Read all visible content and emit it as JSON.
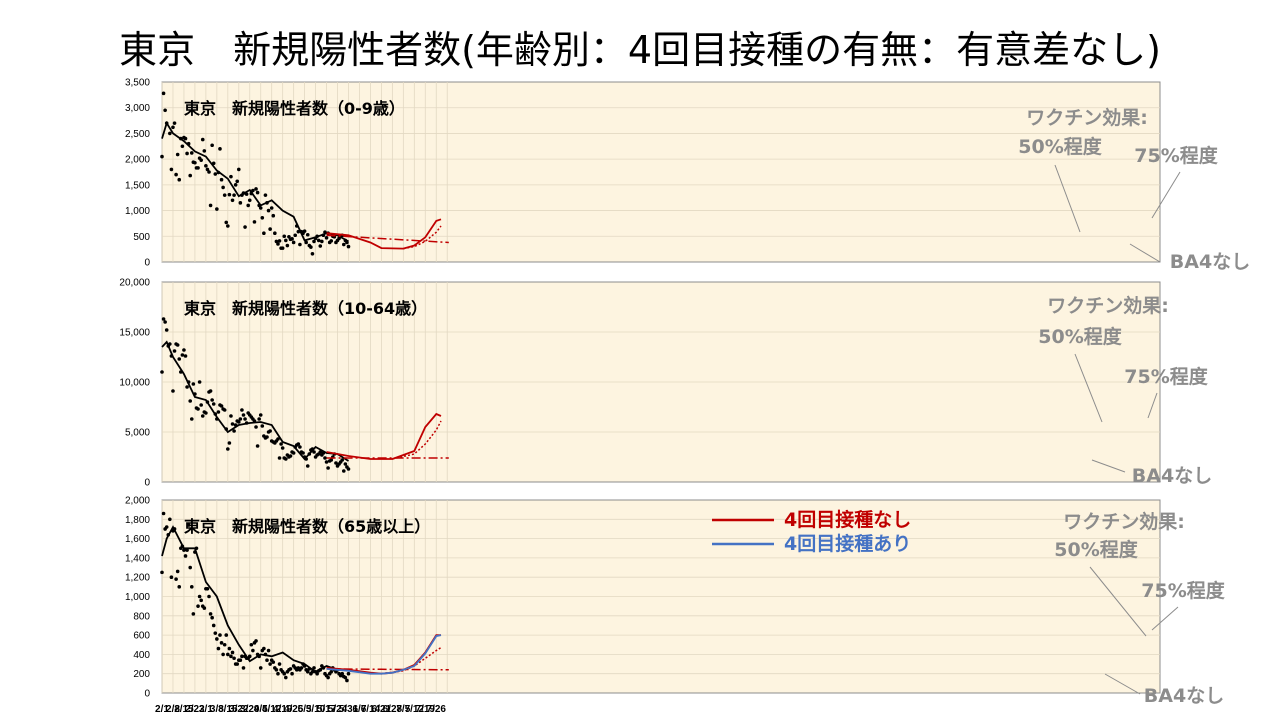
{
  "page": {
    "title": "東京　新規陽性者数(年齢別：4回目接種の有無：有意差なし)"
  },
  "colors": {
    "plot_bg": "#fdf4e0",
    "grid": "#e2d8c2",
    "observed": "#000000",
    "no_4th_dose": "#c00000",
    "with_4th_dose": "#4472c4",
    "annotation": "#8c8c8c"
  },
  "legend": [
    {
      "label": "4回目接種なし",
      "color": "#c00000"
    },
    {
      "label": "4回目接種あり",
      "color": "#4472c4"
    }
  ],
  "chart_data": {
    "type": "line",
    "x_ticks": [
      "2/1",
      "2/8",
      "2/15",
      "2/22",
      "3/1",
      "3/8",
      "3/15",
      "3/22",
      "3/29",
      "4/5",
      "4/12",
      "4/19",
      "4/26",
      "5/3",
      "5/10",
      "5/17",
      "5/24",
      "5/31",
      "6/7",
      "6/14",
      "6/21",
      "6/28",
      "7/5",
      "7/12",
      "7/19",
      "7/26"
    ],
    "panels": [
      {
        "title": "東京　新規陽性者数（0-9歳）",
        "ylim": [
          0,
          3500
        ],
        "y_ticks": [
          "0",
          "500",
          "1,000",
          "1,500",
          "2,000",
          "2,500",
          "3,000",
          "3,500"
        ],
        "annotations": {
          "effect": "ワクチン効果:",
          "p50": "50%程度",
          "p75": "75%程度",
          "no_ba4": "BA4なし"
        },
        "smoothed_days": [
          0,
          3,
          7,
          14,
          21,
          28,
          35,
          42,
          49,
          56,
          63,
          70,
          77,
          84,
          91,
          98,
          105,
          112,
          119
        ],
        "smoothed": [
          2400,
          2700,
          2500,
          2350,
          2150,
          2050,
          1780,
          1620,
          1280,
          1400,
          1100,
          1200,
          1000,
          880,
          420,
          480,
          560,
          520,
          400
        ],
        "daily_days": [
          0,
          1,
          2,
          3,
          5,
          6,
          7,
          8,
          9,
          10,
          11,
          12,
          13,
          14,
          15,
          16,
          17,
          18,
          19,
          20,
          21,
          22,
          23,
          24,
          25,
          26,
          27,
          28,
          29,
          30,
          31,
          32,
          33,
          34,
          35,
          36,
          37,
          38,
          39,
          40,
          41,
          42,
          43,
          44,
          45,
          46,
          47,
          48,
          49,
          50,
          51,
          52,
          53,
          54,
          55,
          56,
          57,
          58,
          59,
          60,
          61,
          62,
          63,
          64,
          65,
          66,
          67,
          68,
          69,
          70,
          71,
          72,
          73,
          74,
          75,
          76,
          77,
          78,
          79,
          80,
          81,
          82,
          83,
          84,
          85,
          86,
          87,
          88,
          89,
          90,
          91,
          92,
          93,
          94,
          95,
          96,
          97,
          98,
          99,
          100,
          101,
          102,
          103,
          104,
          105,
          106,
          107,
          108,
          109,
          110,
          111,
          112,
          113,
          114,
          115,
          116,
          117,
          118,
          119
        ],
        "daily": [
          2050,
          3280,
          2950,
          2700,
          2500,
          1800,
          2620,
          2700,
          1700,
          2090,
          1600,
          2400,
          2250,
          2420,
          2400,
          2110,
          2300,
          1680,
          2120,
          1940,
          1930,
          1830,
          1830,
          2020,
          1980,
          2380,
          2160,
          1870,
          1800,
          1750,
          1100,
          2270,
          1920,
          1710,
          1030,
          1740,
          2200,
          1600,
          1450,
          1300,
          770,
          700,
          1310,
          1660,
          1200,
          1300,
          1500,
          1570,
          1800,
          1150,
          1300,
          1340,
          680,
          1320,
          1100,
          1200,
          1330,
          1390,
          780,
          1420,
          1350,
          1100,
          1050,
          860,
          560,
          1300,
          1150,
          1000,
          640,
          1050,
          900,
          560,
          400,
          350,
          410,
          270,
          270,
          500,
          420,
          320,
          490,
          440,
          450,
          380,
          520,
          700,
          590,
          340,
          590,
          560,
          600,
          380,
          530,
          320,
          290,
          160,
          400,
          460,
          500,
          420,
          310,
          400,
          520,
          580,
          470,
          560,
          380,
          410,
          500,
          490,
          380,
          420,
          460,
          500,
          520,
          340,
          420,
          380,
          300
        ],
        "no_ba4": {
          "days": [
            105,
            183
          ],
          "values": [
            520,
            380
          ]
        },
        "proj_50": {
          "days": [
            105,
            119,
            133,
            140,
            154,
            161,
            168,
            175,
            178
          ],
          "values": [
            560,
            520,
            380,
            270,
            260,
            320,
            480,
            800,
            830
          ]
        },
        "proj_75": {
          "days": [
            154,
            161,
            168,
            175,
            178
          ],
          "values": [
            260,
            300,
            400,
            580,
            700
          ]
        }
      },
      {
        "title": "東京　新規陽性者数（10-64歳）",
        "ylim": [
          0,
          20000
        ],
        "y_ticks": [
          "0",
          "5,000",
          "10,000",
          "15,000",
          "20,000"
        ],
        "annotations": {
          "effect": "ワクチン効果:",
          "p50": "50%程度",
          "p75": "75%程度",
          "no_ba4": "BA4なし"
        },
        "smoothed_days": [
          0,
          3,
          7,
          14,
          21,
          28,
          35,
          42,
          49,
          56,
          63,
          70,
          77,
          84,
          91,
          98,
          105,
          112,
          119
        ],
        "smoothed": [
          13500,
          14000,
          12500,
          10800,
          8500,
          8200,
          6500,
          5000,
          5700,
          5900,
          6000,
          5700,
          4000,
          3600,
          2300,
          3500,
          2900,
          2800,
          2100
        ],
        "daily_days": [
          0,
          1,
          2,
          3,
          4,
          5,
          6,
          7,
          8,
          9,
          10,
          11,
          12,
          13,
          14,
          15,
          16,
          17,
          18,
          19,
          20,
          21,
          22,
          23,
          24,
          25,
          26,
          27,
          28,
          29,
          30,
          31,
          32,
          33,
          34,
          35,
          36,
          37,
          38,
          39,
          40,
          41,
          42,
          43,
          44,
          45,
          46,
          47,
          48,
          49,
          50,
          51,
          52,
          53,
          54,
          55,
          56,
          57,
          58,
          59,
          60,
          61,
          62,
          63,
          64,
          65,
          66,
          67,
          68,
          69,
          70,
          71,
          72,
          73,
          74,
          75,
          76,
          77,
          78,
          79,
          80,
          81,
          82,
          83,
          84,
          85,
          86,
          87,
          88,
          89,
          90,
          91,
          92,
          93,
          94,
          95,
          96,
          97,
          98,
          99,
          100,
          101,
          102,
          103,
          104,
          105,
          106,
          107,
          108,
          109,
          110,
          111,
          112,
          113,
          114,
          115,
          116,
          117,
          118,
          119
        ],
        "daily": [
          11000,
          16300,
          16000,
          15200,
          13600,
          13800,
          12600,
          9100,
          13100,
          13800,
          13700,
          12300,
          11000,
          12700,
          13200,
          12600,
          9500,
          10000,
          8100,
          6300,
          9800,
          8800,
          7400,
          7300,
          10000,
          7700,
          6600,
          7000,
          6900,
          8000,
          9000,
          9100,
          8200,
          7800,
          6800,
          6300,
          7000,
          7700,
          7600,
          7300,
          7200,
          5300,
          3300,
          3900,
          6600,
          5800,
          5100,
          5700,
          6100,
          6000,
          6300,
          7200,
          6700,
          6300,
          5900,
          6900,
          6700,
          6500,
          6300,
          6100,
          5500,
          3600,
          6300,
          6700,
          5600,
          4600,
          4400,
          4500,
          5000,
          5100,
          4100,
          4000,
          3900,
          4100,
          4300,
          2400,
          3800,
          3400,
          2400,
          2300,
          2700,
          2500,
          2600,
          3000,
          2900,
          3500,
          3700,
          3800,
          3500,
          3000,
          2900,
          2500,
          2300,
          1600,
          2800,
          3200,
          3300,
          3000,
          2500,
          2700,
          2800,
          3000,
          2700,
          2900,
          2400,
          2000,
          1400,
          2100,
          2200,
          2500,
          2800,
          1900,
          1600,
          1800,
          2000,
          2200,
          1100,
          1800,
          1500,
          1300
        ],
        "no_ba4": {
          "days": [
            105,
            183
          ],
          "values": [
            2400,
            2400
          ]
        },
        "proj_50": {
          "days": [
            105,
            119,
            133,
            147,
            161,
            168,
            175,
            178
          ],
          "values": [
            3000,
            2600,
            2300,
            2300,
            3100,
            5500,
            6800,
            6600
          ]
        },
        "proj_75": {
          "days": [
            147,
            161,
            168,
            175,
            178
          ],
          "values": [
            2300,
            2800,
            3800,
            5200,
            6100
          ]
        }
      },
      {
        "title": "東京　新規陽性者数（65歳以上）",
        "ylim": [
          0,
          2000
        ],
        "y_ticks": [
          "0",
          "200",
          "400",
          "600",
          "800",
          "1,000",
          "1,200",
          "1,400",
          "1,600",
          "1,800",
          "2,000"
        ],
        "annotations": {
          "effect": "ワクチン効果:",
          "p50": "50%程度",
          "p75": "75%程度",
          "no_ba4": "BA4なし"
        },
        "smoothed_days": [
          0,
          3,
          7,
          14,
          21,
          28,
          35,
          42,
          49,
          56,
          63,
          70,
          77,
          84,
          91,
          98,
          105,
          112,
          119
        ],
        "smoothed": [
          1420,
          1600,
          1720,
          1500,
          1500,
          1150,
          1000,
          700,
          500,
          330,
          400,
          380,
          420,
          340,
          300,
          220,
          280,
          240,
          240
        ],
        "daily_days": [
          0,
          1,
          2,
          3,
          4,
          5,
          6,
          7,
          8,
          9,
          10,
          11,
          12,
          13,
          14,
          15,
          16,
          17,
          18,
          19,
          20,
          21,
          22,
          23,
          24,
          25,
          26,
          27,
          28,
          29,
          30,
          31,
          32,
          33,
          34,
          35,
          36,
          37,
          38,
          39,
          40,
          41,
          42,
          43,
          44,
          45,
          46,
          47,
          48,
          49,
          50,
          51,
          52,
          53,
          54,
          55,
          56,
          57,
          58,
          59,
          60,
          61,
          62,
          63,
          64,
          65,
          66,
          67,
          68,
          69,
          70,
          71,
          72,
          73,
          74,
          75,
          76,
          77,
          78,
          79,
          80,
          81,
          82,
          83,
          84,
          85,
          86,
          87,
          88,
          89,
          90,
          91,
          92,
          93,
          94,
          95,
          96,
          97,
          98,
          99,
          100,
          101,
          102,
          103,
          104,
          105,
          106,
          107,
          108,
          109,
          110,
          111,
          112,
          113,
          114,
          115,
          116,
          117,
          118,
          119
        ],
        "daily": [
          1250,
          1860,
          1700,
          1720,
          1640,
          1800,
          1200,
          1680,
          1700,
          1180,
          1260,
          1100,
          1500,
          1520,
          1480,
          1420,
          1480,
          1740,
          1300,
          1100,
          820,
          1460,
          1500,
          900,
          1000,
          960,
          900,
          880,
          1080,
          1080,
          1000,
          820,
          780,
          700,
          620,
          560,
          460,
          600,
          520,
          400,
          500,
          600,
          400,
          460,
          380,
          420,
          360,
          300,
          300,
          340,
          340,
          380,
          260,
          380,
          360,
          360,
          380,
          500,
          440,
          520,
          540,
          400,
          380,
          260,
          440,
          460,
          400,
          340,
          440,
          300,
          340,
          320,
          260,
          240,
          200,
          300,
          240,
          220,
          200,
          160,
          220,
          240,
          250,
          200,
          280,
          260,
          240,
          260,
          240,
          260,
          300,
          280,
          240,
          220,
          250,
          200,
          220,
          260,
          220,
          200,
          230,
          240,
          280,
          260,
          200,
          180,
          160,
          200,
          220,
          260,
          240,
          220,
          240,
          200,
          180,
          200,
          170,
          160,
          130,
          200
        ],
        "no_ba4": {
          "days": [
            105,
            183
          ],
          "values": [
            250,
            240
          ]
        },
        "proj_50": {
          "days": [
            105,
            119,
            133,
            140,
            147,
            154,
            161,
            168,
            175,
            178
          ],
          "values": [
            260,
            240,
            210,
            200,
            210,
            240,
            290,
            420,
            600,
            600
          ]
        },
        "proj_75": {
          "days": [
            140,
            154,
            161,
            168,
            175,
            178
          ],
          "values": [
            200,
            230,
            280,
            360,
            440,
            470
          ]
        },
        "proj_with": {
          "days": [
            105,
            119,
            133,
            140,
            147,
            154,
            161,
            168,
            175,
            178
          ],
          "values": [
            250,
            230,
            200,
            200,
            210,
            240,
            280,
            410,
            590,
            600
          ]
        }
      }
    ]
  }
}
